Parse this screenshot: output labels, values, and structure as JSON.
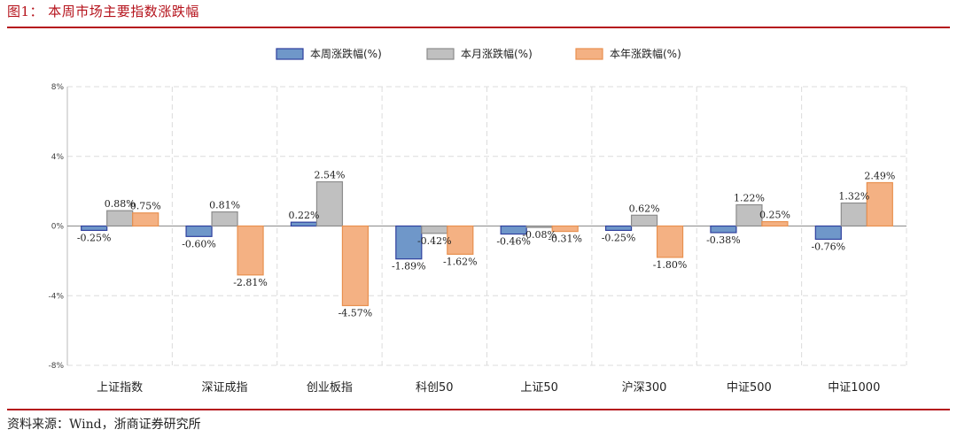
{
  "figure": {
    "title": "图1：  本周市场主要指数涨跌幅",
    "source": "资料来源：Wind，浙商证券研究所"
  },
  "chart_data": {
    "type": "bar",
    "title": "本周市场主要指数涨跌幅",
    "categories": [
      "上证指数",
      "深证成指",
      "创业板指",
      "科创50",
      "上证50",
      "沪深300",
      "中证500",
      "中证1000"
    ],
    "series": [
      {
        "name": "本周涨跌幅(%)",
        "color": "#6f97c9",
        "stroke": "#2f3f9e",
        "values": [
          -0.25,
          -0.6,
          0.22,
          -1.89,
          -0.46,
          -0.25,
          -0.38,
          -0.76
        ],
        "labels": [
          "-0.25%",
          "-0.60%",
          "0.22%",
          "-1.89%",
          "-0.46%",
          "-0.25%",
          "-0.38%",
          "-0.76%"
        ]
      },
      {
        "name": "本月涨跌幅(%)",
        "color": "#c0c0c0",
        "stroke": "#8c8c8c",
        "values": [
          0.88,
          0.81,
          2.54,
          -0.42,
          -0.08,
          0.62,
          1.22,
          1.32
        ],
        "labels": [
          "0.88%",
          "0.81%",
          "2.54%",
          "-0.42%",
          "-0.08%",
          "0.62%",
          "1.22%",
          "1.32%"
        ]
      },
      {
        "name": "本年涨跌幅(%)",
        "color": "#f4b183",
        "stroke": "#e8904f",
        "values": [
          0.75,
          -2.81,
          -4.57,
          -1.62,
          -0.31,
          -1.8,
          0.25,
          2.49
        ],
        "labels": [
          "0.75%",
          "-2.81%",
          "-4.57%",
          "-1.62%",
          "-0.31%",
          "-1.80%",
          "0.25%",
          "2.49%"
        ]
      }
    ],
    "ylim": [
      -8,
      8
    ],
    "yticks": [
      8,
      4,
      0,
      -4,
      -8
    ],
    "ytick_labels": [
      "8%",
      "4%",
      "0%",
      "-4%",
      "-8%"
    ],
    "xlabel": "",
    "ylabel": "",
    "grid": true,
    "legend_position": "top-center"
  }
}
